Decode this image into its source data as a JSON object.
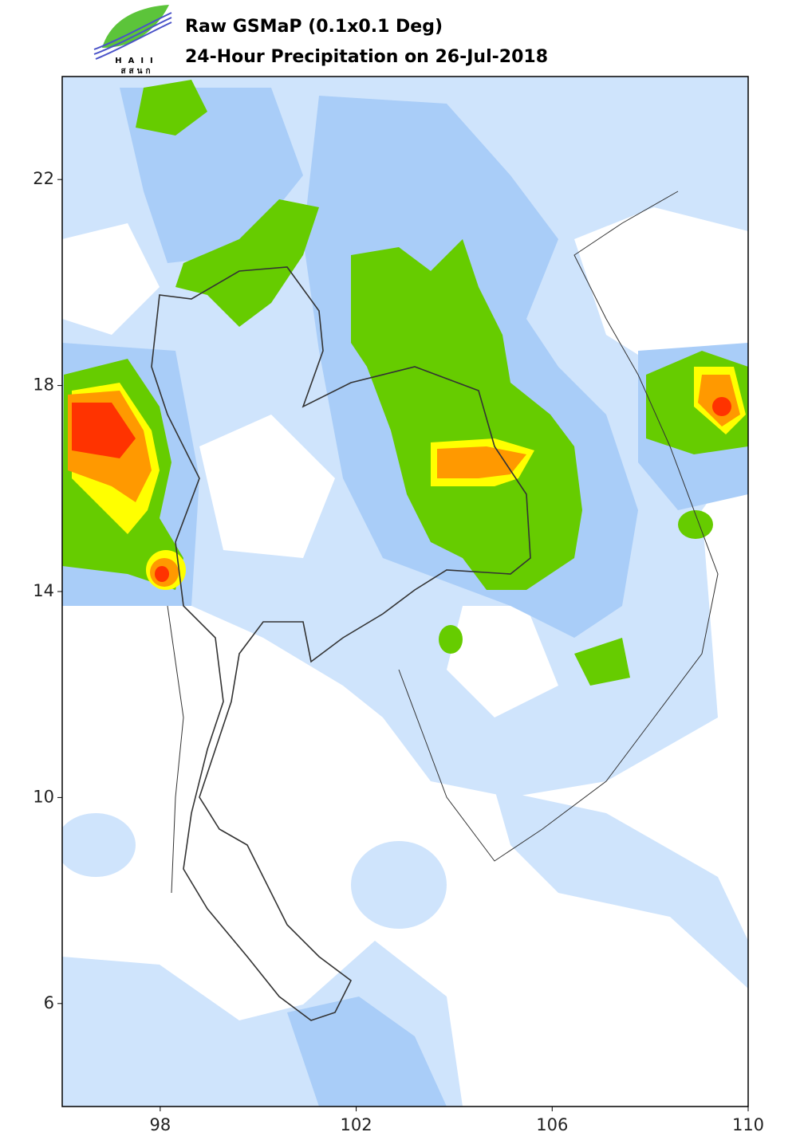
{
  "header": {
    "logo_text": "HAII",
    "logo_text_thai": "สสนก",
    "title": "Raw GSMaP (0.1x0.1 Deg)",
    "subtitle": "24-Hour Precipitation on 26-Jul-2018"
  },
  "map": {
    "xlim": [
      96,
      110
    ],
    "ylim": [
      4,
      24
    ],
    "xticks": [
      98,
      102,
      106,
      110
    ],
    "yticks": [
      6,
      10,
      14,
      18,
      22
    ]
  }
}
